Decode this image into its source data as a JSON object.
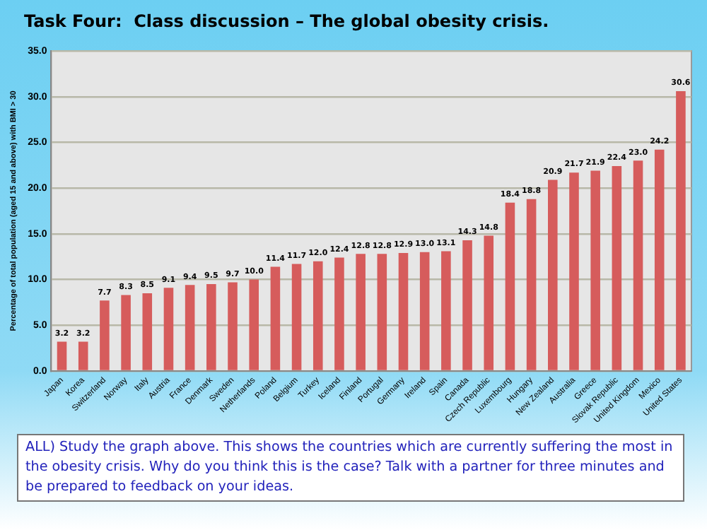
{
  "chart_data": {
    "type": "bar",
    "title": "Task Four:  Class discussion – The global obesity crisis.",
    "ylabel": "Percentage of total population (aged 15 and above) with BMI > 30",
    "categories": [
      "Japan",
      "Korea",
      "Switzerland",
      "Norway",
      "Italy",
      "Austria",
      "France",
      "Denmark",
      "Sweden",
      "Netherlands",
      "Poland",
      "Belgium",
      "Turkey",
      "Iceland",
      "Finland",
      "Portugal",
      "Germany",
      "Ireland",
      "Spain",
      "Canada",
      "Czech Republic",
      "Luxembourg",
      "Hungary",
      "New Zealand",
      "Australia",
      "Greece",
      "Slovak Republic",
      "United Kingdom",
      "Mexico",
      "United States"
    ],
    "values": [
      3.2,
      3.2,
      7.7,
      8.3,
      8.5,
      9.1,
      9.4,
      9.5,
      9.7,
      10.0,
      11.4,
      11.7,
      12.0,
      12.4,
      12.8,
      12.8,
      12.9,
      13.0,
      13.1,
      14.3,
      14.8,
      18.4,
      18.8,
      20.9,
      21.7,
      21.9,
      22.4,
      23.0,
      24.2,
      30.6
    ],
    "value_labels": [
      "3.2",
      "3.2",
      "7.7",
      "8.3",
      "8.5",
      "9.1",
      "9.4",
      "9.5",
      "9.7",
      "10.0",
      "11.4",
      "11.7",
      "12.0",
      "12.4",
      "12.8",
      "12.8",
      "12.9",
      "13.0",
      "13.1",
      "14.3",
      "14.8",
      "18.4",
      "18.8",
      "20.9",
      "21.7",
      "21.9",
      "22.4",
      "23.0",
      "24.2",
      "30.6"
    ],
    "color": "#d65c5c",
    "grid": "y",
    "legend": false,
    "ylim": [
      0,
      35
    ],
    "yticks": [
      {
        "value": 0,
        "label": "0.0"
      },
      {
        "value": 5,
        "label": "5.0"
      },
      {
        "value": 10,
        "label": "10.0"
      },
      {
        "value": 15,
        "label": "15.0"
      },
      {
        "value": 20,
        "label": "20.0"
      },
      {
        "value": 25,
        "label": "25.0"
      },
      {
        "value": 30,
        "label": "30.0"
      },
      {
        "value": 35,
        "label": "35.0"
      }
    ],
    "annotations": [
      "ALL) Study the graph above. This shows the countries which are currently suffering the most in the obesity crisis. Why do you think this is the case? Talk with a partner for three minutes and be prepared to feedback on your ideas."
    ]
  }
}
